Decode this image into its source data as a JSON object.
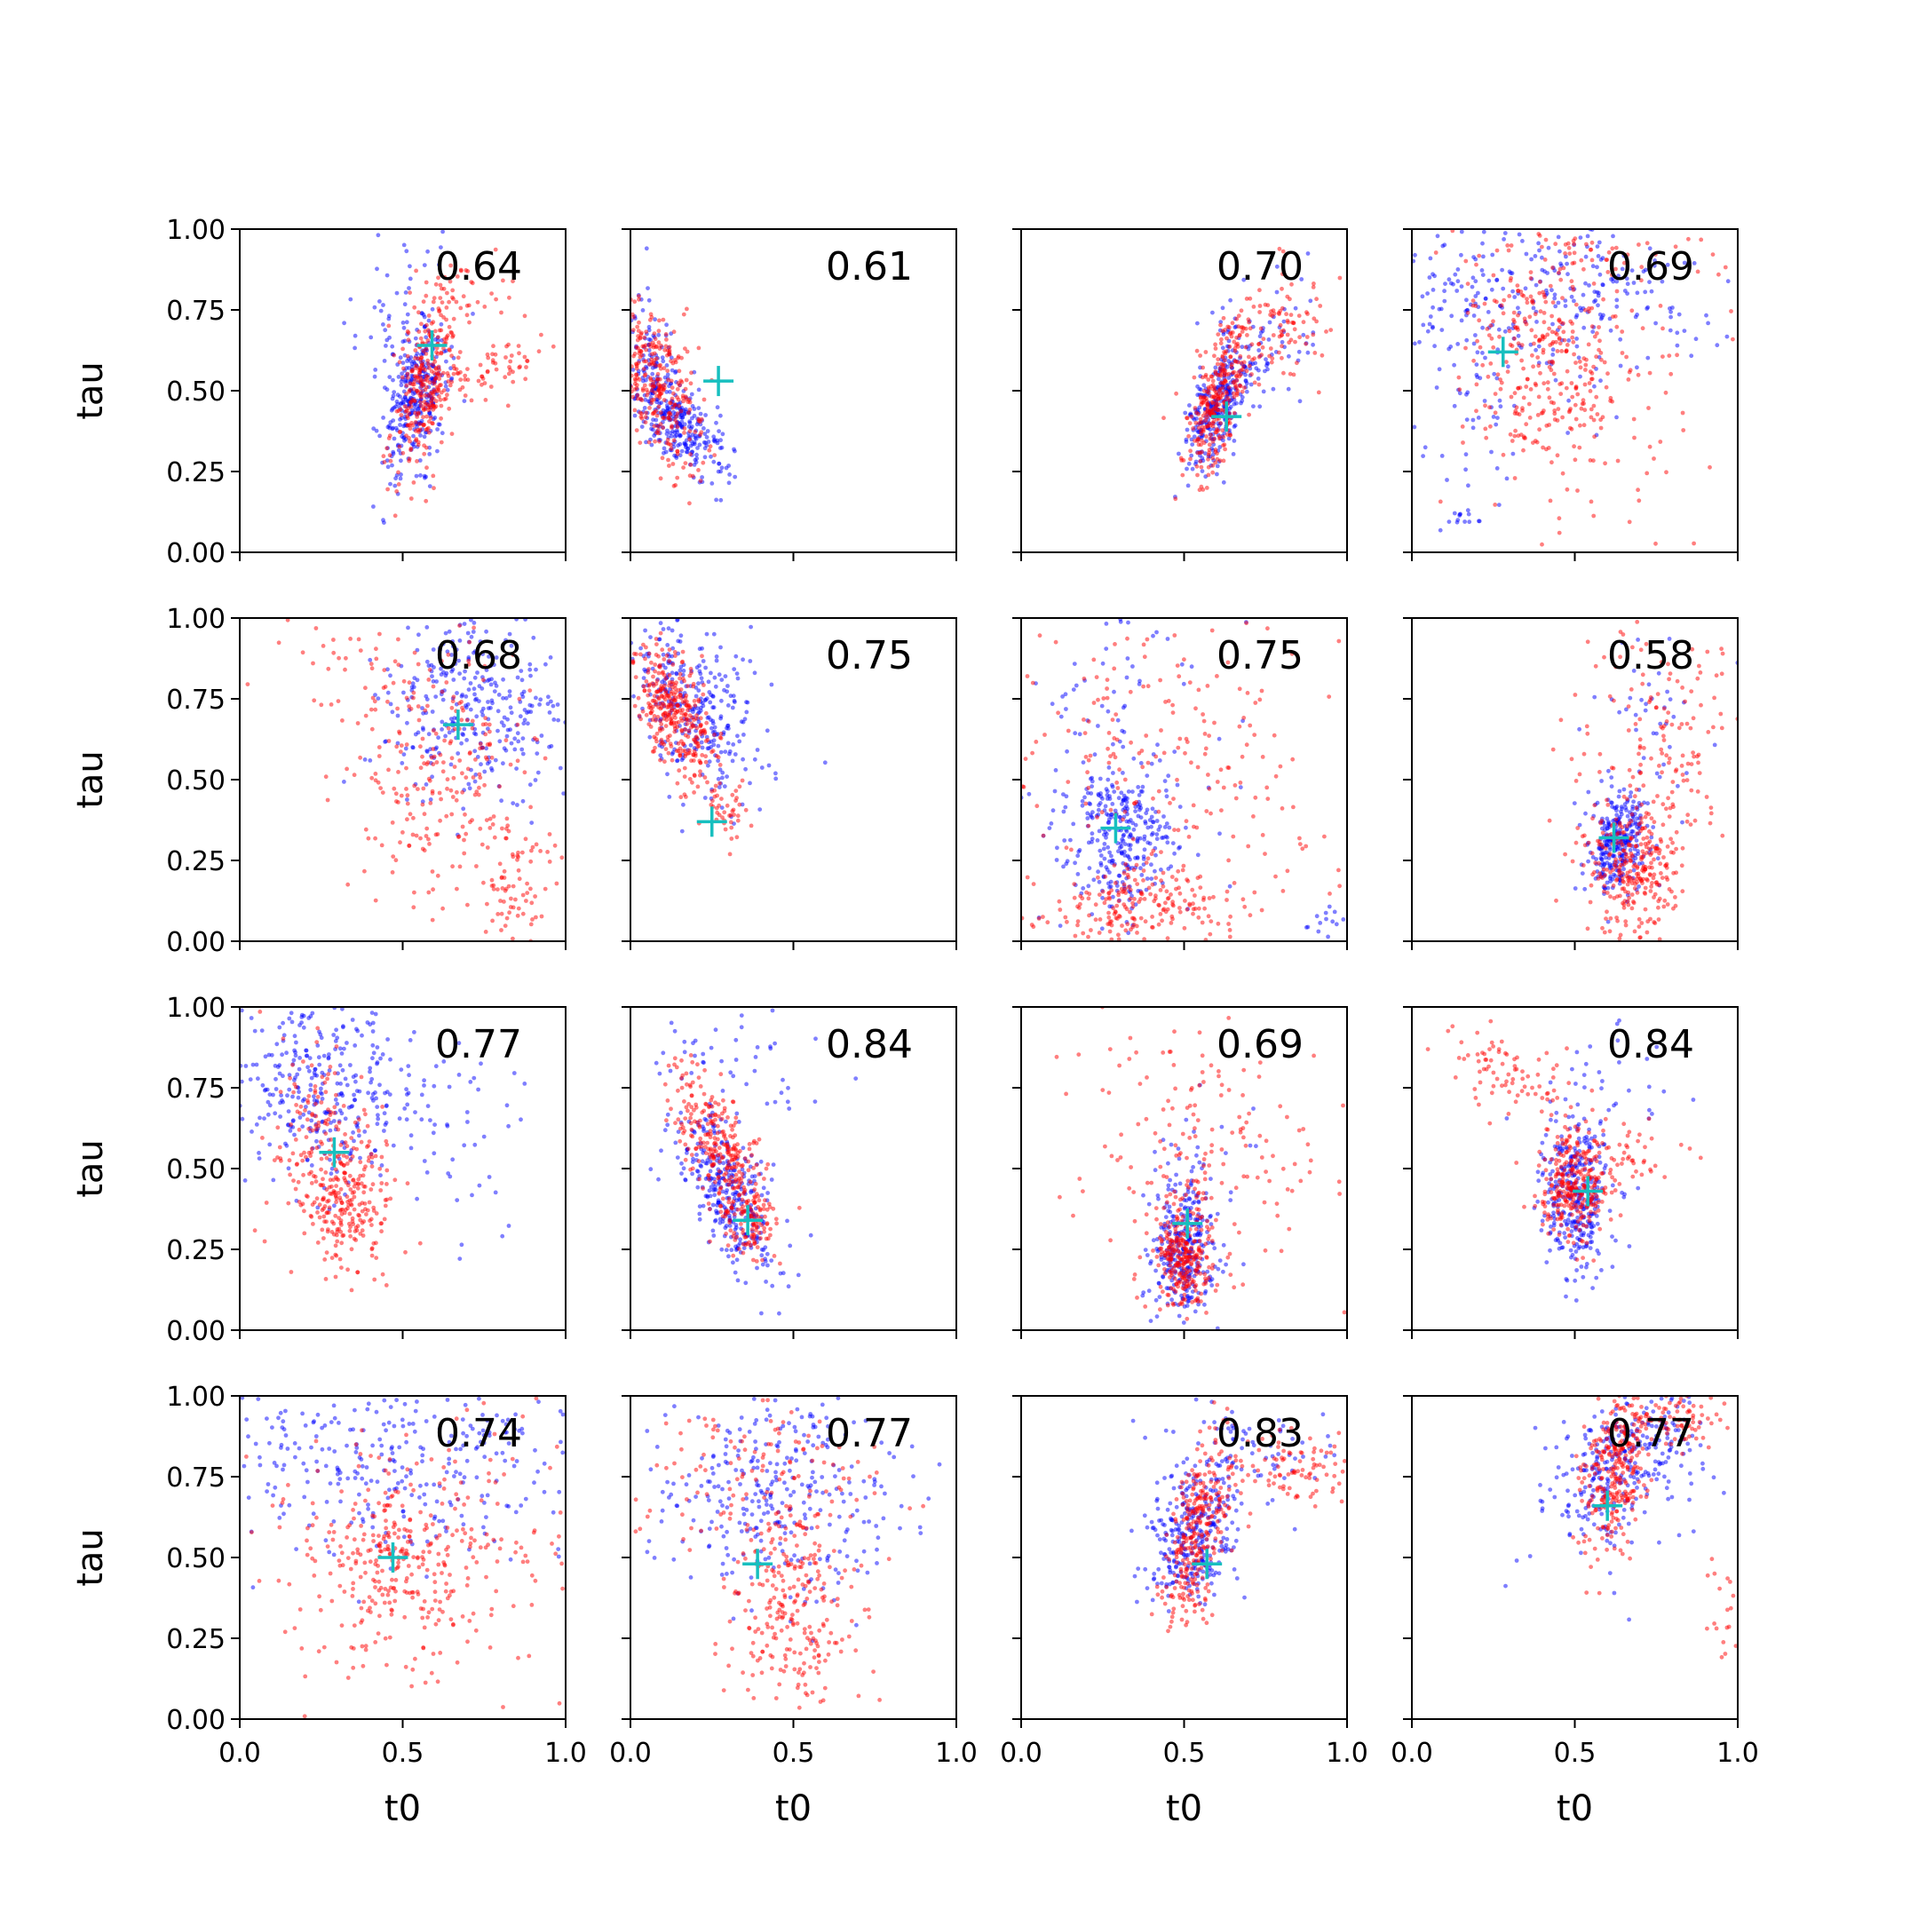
{
  "figure": {
    "xlabel": "t0",
    "ylabel": "tau",
    "x_ticks": [
      "0.0",
      "0.5",
      "1.0"
    ],
    "y_ticks": [
      "0.00",
      "0.25",
      "0.50",
      "0.75",
      "1.00"
    ],
    "colors": {
      "series_a": "#0000ff",
      "series_b": "#ff0000",
      "marker": "#17bfbf"
    }
  },
  "chart_data": [
    {
      "type": "scatter",
      "score": "0.64",
      "xlim": [
        0,
        1
      ],
      "ylim": [
        0,
        1
      ],
      "marker": [
        0.59,
        0.64
      ],
      "series": [
        {
          "color": "#0000ff",
          "clusters": [
            [
              0.54,
              0.47,
              0.05,
              0.11,
              0.45,
              300
            ],
            [
              0.5,
              0.72,
              0.1,
              0.13,
              0,
              60
            ]
          ]
        },
        {
          "color": "#ff0000",
          "clusters": [
            [
              0.57,
              0.52,
              0.05,
              0.14,
              0.5,
              300
            ],
            [
              0.8,
              0.58,
              0.09,
              0.05,
              0.6,
              60
            ],
            [
              0.68,
              0.8,
              0.1,
              0.07,
              0,
              40
            ]
          ]
        }
      ]
    },
    {
      "type": "scatter",
      "score": "0.61",
      "xlim": [
        0,
        1
      ],
      "ylim": [
        0,
        1
      ],
      "marker": [
        0.27,
        0.53
      ],
      "series": [
        {
          "color": "#0000ff",
          "clusters": [
            [
              0.15,
              0.4,
              0.07,
              0.09,
              -0.6,
              300
            ],
            [
              0.05,
              0.62,
              0.04,
              0.1,
              0,
              60
            ]
          ]
        },
        {
          "color": "#ff0000",
          "clusters": [
            [
              0.08,
              0.52,
              0.07,
              0.13,
              -0.6,
              320
            ]
          ]
        }
      ]
    },
    {
      "type": "scatter",
      "score": "0.70",
      "xlim": [
        0,
        1
      ],
      "ylim": [
        0,
        1
      ],
      "marker": [
        0.63,
        0.42
      ],
      "series": [
        {
          "color": "#0000ff",
          "clusters": [
            [
              0.6,
              0.44,
              0.05,
              0.1,
              0.5,
              300
            ],
            [
              0.75,
              0.65,
              0.1,
              0.12,
              0.3,
              60
            ]
          ]
        },
        {
          "color": "#ff0000",
          "clusters": [
            [
              0.6,
              0.48,
              0.05,
              0.12,
              0.6,
              300
            ],
            [
              0.8,
              0.68,
              0.1,
              0.1,
              0.3,
              100
            ]
          ]
        }
      ]
    },
    {
      "type": "scatter",
      "score": "0.69",
      "xlim": [
        0,
        1
      ],
      "ylim": [
        0,
        1
      ],
      "marker": [
        0.28,
        0.62
      ],
      "series": [
        {
          "color": "#0000ff",
          "clusters": [
            [
              0.4,
              0.8,
              0.28,
              0.13,
              0,
              300
            ],
            [
              0.2,
              0.5,
              0.12,
              0.2,
              0,
              60
            ],
            [
              0.15,
              0.12,
              0.03,
              0.03,
              0,
              15
            ]
          ]
        },
        {
          "color": "#ff0000",
          "clusters": [
            [
              0.4,
              0.6,
              0.12,
              0.17,
              0,
              280
            ],
            [
              0.65,
              0.35,
              0.15,
              0.2,
              0,
              80
            ],
            [
              0.5,
              0.9,
              0.25,
              0.08,
              0,
              60
            ]
          ]
        }
      ]
    },
    {
      "type": "scatter",
      "score": "0.68",
      "xlim": [
        0,
        1
      ],
      "ylim": [
        0,
        1
      ],
      "marker": [
        0.67,
        0.67
      ],
      "series": [
        {
          "color": "#0000ff",
          "clusters": [
            [
              0.72,
              0.72,
              0.15,
              0.15,
              0,
              320
            ]
          ]
        },
        {
          "color": "#ff0000",
          "clusters": [
            [
              0.62,
              0.5,
              0.15,
              0.22,
              0,
              250
            ],
            [
              0.85,
              0.18,
              0.06,
              0.08,
              0,
              60
            ],
            [
              0.35,
              0.85,
              0.15,
              0.1,
              0,
              40
            ]
          ]
        }
      ]
    },
    {
      "type": "scatter",
      "score": "0.75",
      "xlim": [
        0,
        1
      ],
      "ylim": [
        0,
        1
      ],
      "marker": [
        0.25,
        0.37
      ],
      "series": [
        {
          "color": "#0000ff",
          "clusters": [
            [
              0.18,
              0.75,
              0.11,
              0.14,
              -0.5,
              320
            ]
          ]
        },
        {
          "color": "#ff0000",
          "clusters": [
            [
              0.14,
              0.7,
              0.06,
              0.11,
              -0.6,
              340
            ],
            [
              0.3,
              0.42,
              0.03,
              0.05,
              0,
              40
            ]
          ]
        }
      ]
    },
    {
      "type": "scatter",
      "score": "0.75",
      "xlim": [
        0,
        1
      ],
      "ylim": [
        0,
        1
      ],
      "marker": [
        0.29,
        0.35
      ],
      "series": [
        {
          "color": "#0000ff",
          "clusters": [
            [
              0.3,
              0.32,
              0.09,
              0.11,
              0,
              300
            ],
            [
              0.3,
              0.7,
              0.2,
              0.2,
              0,
              80
            ],
            [
              0.95,
              0.05,
              0.04,
              0.03,
              0,
              15
            ]
          ]
        },
        {
          "color": "#ff0000",
          "clusters": [
            [
              0.35,
              0.1,
              0.15,
              0.06,
              0,
              200
            ],
            [
              0.5,
              0.55,
              0.28,
              0.25,
              0,
              220
            ]
          ]
        }
      ]
    },
    {
      "type": "scatter",
      "score": "0.58",
      "xlim": [
        0,
        1
      ],
      "ylim": [
        0,
        1
      ],
      "marker": [
        0.62,
        0.32
      ],
      "series": [
        {
          "color": "#0000ff",
          "clusters": [
            [
              0.63,
              0.3,
              0.05,
              0.08,
              0.3,
              300
            ],
            [
              0.75,
              0.6,
              0.12,
              0.15,
              0,
              40
            ]
          ]
        },
        {
          "color": "#ff0000",
          "clusters": [
            [
              0.68,
              0.22,
              0.07,
              0.1,
              0,
              280
            ],
            [
              0.75,
              0.6,
              0.13,
              0.2,
              0,
              160
            ]
          ]
        }
      ]
    },
    {
      "type": "scatter",
      "score": "0.77",
      "xlim": [
        0,
        1
      ],
      "ylim": [
        0,
        1
      ],
      "marker": [
        0.29,
        0.55
      ],
      "series": [
        {
          "color": "#0000ff",
          "clusters": [
            [
              0.25,
              0.75,
              0.14,
              0.15,
              0,
              320
            ],
            [
              0.6,
              0.6,
              0.2,
              0.15,
              0,
              60
            ]
          ]
        },
        {
          "color": "#ff0000",
          "clusters": [
            [
              0.3,
              0.5,
              0.09,
              0.15,
              -0.3,
              300
            ],
            [
              0.32,
              0.37,
              0.04,
              0.04,
              0,
              60
            ]
          ]
        }
      ]
    },
    {
      "type": "scatter",
      "score": "0.84",
      "xlim": [
        0,
        1
      ],
      "ylim": [
        0,
        1
      ],
      "marker": [
        0.36,
        0.34
      ],
      "series": [
        {
          "color": "#0000ff",
          "clusters": [
            [
              0.3,
              0.42,
              0.07,
              0.13,
              -0.6,
              320
            ],
            [
              0.3,
              0.82,
              0.15,
              0.1,
              0,
              50
            ]
          ]
        },
        {
          "color": "#ff0000",
          "clusters": [
            [
              0.28,
              0.55,
              0.07,
              0.13,
              -0.7,
              300
            ],
            [
              0.38,
              0.33,
              0.03,
              0.06,
              0,
              80
            ]
          ]
        }
      ]
    },
    {
      "type": "scatter",
      "score": "0.69",
      "xlim": [
        0,
        1
      ],
      "ylim": [
        0,
        1
      ],
      "marker": [
        0.51,
        0.33
      ],
      "series": [
        {
          "color": "#0000ff",
          "clusters": [
            [
              0.5,
              0.25,
              0.05,
              0.1,
              0,
              300
            ],
            [
              0.55,
              0.55,
              0.1,
              0.1,
              0,
              30
            ]
          ]
        },
        {
          "color": "#ff0000",
          "clusters": [
            [
              0.5,
              0.22,
              0.04,
              0.09,
              0,
              260
            ],
            [
              0.55,
              0.55,
              0.2,
              0.2,
              0,
              180
            ]
          ]
        }
      ]
    },
    {
      "type": "scatter",
      "score": "0.84",
      "xlim": [
        0,
        1
      ],
      "ylim": [
        0,
        1
      ],
      "marker": [
        0.54,
        0.43
      ],
      "series": [
        {
          "color": "#0000ff",
          "clusters": [
            [
              0.5,
              0.42,
              0.05,
              0.11,
              0,
              320
            ],
            [
              0.55,
              0.75,
              0.1,
              0.12,
              0,
              40
            ]
          ]
        },
        {
          "color": "#ff0000",
          "clusters": [
            [
              0.5,
              0.45,
              0.05,
              0.09,
              0,
              300
            ],
            [
              0.3,
              0.8,
              0.1,
              0.07,
              -0.5,
              80
            ],
            [
              0.7,
              0.55,
              0.07,
              0.05,
              0,
              40
            ]
          ]
        }
      ]
    },
    {
      "type": "scatter",
      "score": "0.74",
      "xlim": [
        0,
        1
      ],
      "ylim": [
        0,
        1
      ],
      "marker": [
        0.47,
        0.5
      ],
      "series": [
        {
          "color": "#0000ff",
          "clusters": [
            [
              0.5,
              0.8,
              0.25,
              0.15,
              0,
              320
            ]
          ]
        },
        {
          "color": "#ff0000",
          "clusters": [
            [
              0.45,
              0.45,
              0.12,
              0.12,
              0,
              200
            ],
            [
              0.6,
              0.55,
              0.25,
              0.25,
              0,
              200
            ]
          ]
        }
      ]
    },
    {
      "type": "scatter",
      "score": "0.77",
      "xlim": [
        0,
        1
      ],
      "ylim": [
        0,
        1
      ],
      "marker": [
        0.39,
        0.48
      ],
      "series": [
        {
          "color": "#0000ff",
          "clusters": [
            [
              0.45,
              0.7,
              0.2,
              0.17,
              0,
              320
            ]
          ]
        },
        {
          "color": "#ff0000",
          "clusters": [
            [
              0.5,
              0.35,
              0.1,
              0.15,
              0,
              250
            ],
            [
              0.4,
              0.75,
              0.2,
              0.15,
              0,
              140
            ]
          ]
        }
      ]
    },
    {
      "type": "scatter",
      "score": "0.83",
      "xlim": [
        0,
        1
      ],
      "ylim": [
        0,
        1
      ],
      "marker": [
        0.57,
        0.48
      ],
      "series": [
        {
          "color": "#0000ff",
          "clusters": [
            [
              0.53,
              0.58,
              0.07,
              0.12,
              0.4,
              320
            ],
            [
              0.72,
              0.82,
              0.12,
              0.08,
              0,
              60
            ]
          ]
        },
        {
          "color": "#ff0000",
          "clusters": [
            [
              0.54,
              0.58,
              0.05,
              0.14,
              0.5,
              300
            ],
            [
              0.85,
              0.78,
              0.1,
              0.06,
              0,
              100
            ]
          ]
        }
      ]
    },
    {
      "type": "scatter",
      "score": "0.77",
      "xlim": [
        0,
        1
      ],
      "ylim": [
        0,
        1
      ],
      "marker": [
        0.6,
        0.66
      ],
      "series": [
        {
          "color": "#0000ff",
          "clusters": [
            [
              0.65,
              0.78,
              0.12,
              0.12,
              0.4,
              320
            ]
          ]
        },
        {
          "color": "#ff0000",
          "clusters": [
            [
              0.62,
              0.75,
              0.05,
              0.12,
              0.3,
              280
            ],
            [
              0.8,
              0.93,
              0.1,
              0.05,
              0,
              100
            ],
            [
              0.96,
              0.35,
              0.03,
              0.12,
              0,
              20
            ]
          ]
        }
      ]
    }
  ]
}
